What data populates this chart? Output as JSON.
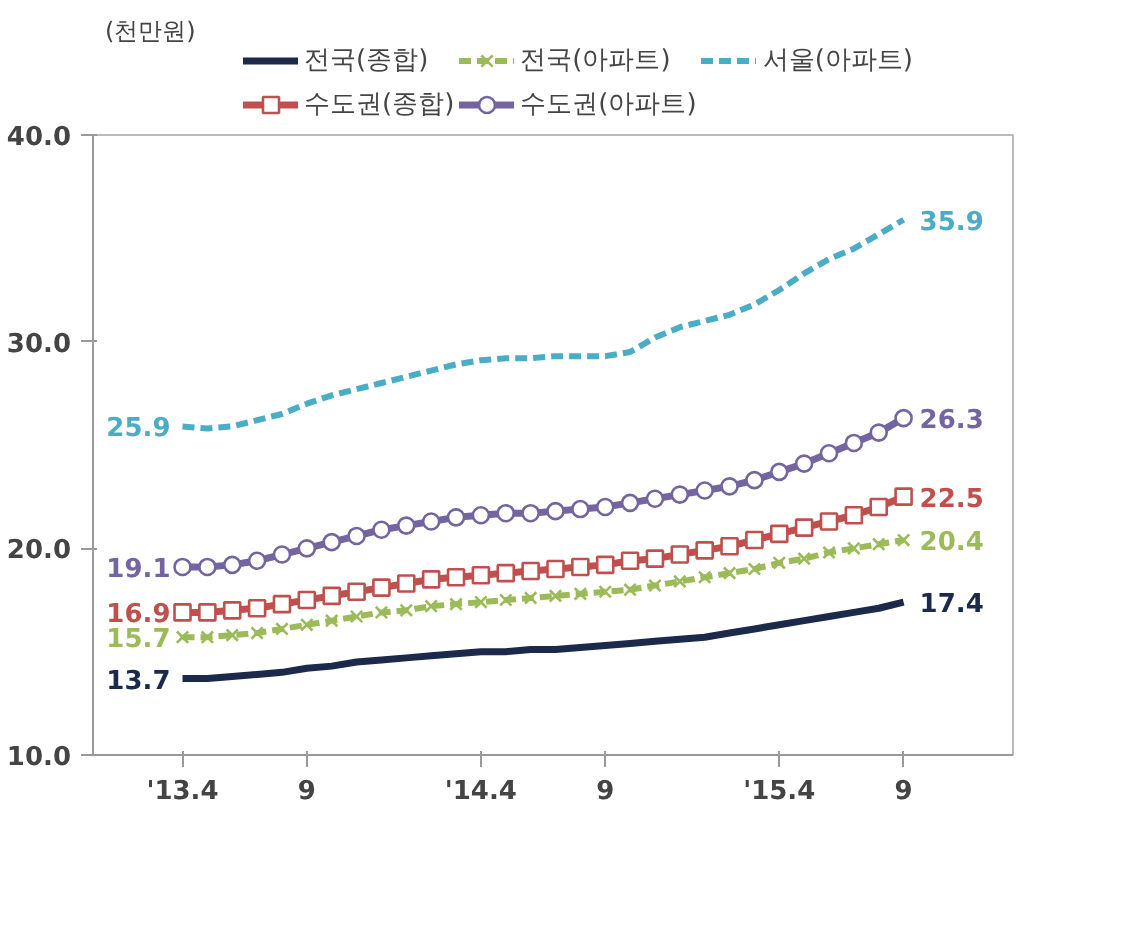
{
  "chart_data": {
    "type": "line",
    "ylabel": "(천만원)",
    "categories": [
      "'13.4",
      null,
      null,
      null,
      null,
      "9",
      null,
      null,
      null,
      null,
      null,
      null,
      "'14.4",
      null,
      null,
      null,
      null,
      "9",
      null,
      null,
      null,
      null,
      null,
      null,
      "'15.4",
      null,
      null,
      null,
      null,
      "9"
    ],
    "ylim": [
      10,
      40
    ],
    "yticks": [
      {
        "value": 10,
        "label": "10.0"
      },
      {
        "value": 20,
        "label": "20.0"
      },
      {
        "value": 30,
        "label": "30.0"
      },
      {
        "value": 40,
        "label": "40.0"
      }
    ],
    "grid": false,
    "legend": "top",
    "series": [
      {
        "name": "전국(종합)",
        "color": "#1b2a4a",
        "marker": "none",
        "line_style": "solid",
        "values": [
          13.7,
          13.7,
          13.8,
          13.9,
          14.0,
          14.2,
          14.3,
          14.5,
          14.6,
          14.7,
          14.8,
          14.9,
          15.0,
          15.0,
          15.1,
          15.1,
          15.2,
          15.3,
          15.4,
          15.5,
          15.6,
          15.7,
          15.9,
          16.1,
          16.3,
          16.5,
          16.7,
          16.9,
          17.1,
          17.4
        ],
        "value_labels": [
          "13.7",
          null,
          null,
          null,
          null,
          null,
          null,
          null,
          null,
          null,
          null,
          null,
          null,
          null,
          null,
          null,
          null,
          null,
          null,
          null,
          null,
          null,
          null,
          null,
          null,
          null,
          null,
          null,
          null,
          "17.4"
        ]
      },
      {
        "name": "수도권(종합)",
        "color": "#c0504d",
        "marker": "square",
        "line_style": "solid",
        "values": [
          16.9,
          16.9,
          17.0,
          17.1,
          17.3,
          17.5,
          17.7,
          17.9,
          18.1,
          18.3,
          18.5,
          18.6,
          18.7,
          18.8,
          18.9,
          19.0,
          19.1,
          19.2,
          19.4,
          19.5,
          19.7,
          19.9,
          20.1,
          20.4,
          20.7,
          21.0,
          21.3,
          21.6,
          22.0,
          22.5
        ],
        "value_labels": [
          "16.9",
          null,
          null,
          null,
          null,
          null,
          null,
          null,
          null,
          null,
          null,
          null,
          null,
          null,
          null,
          null,
          null,
          null,
          null,
          null,
          null,
          null,
          null,
          null,
          null,
          null,
          null,
          null,
          null,
          "22.5"
        ]
      },
      {
        "name": "전국(아파트)",
        "color": "#9bbb59",
        "marker": "cross",
        "line_style": "dashed",
        "values": [
          15.7,
          15.7,
          15.8,
          15.9,
          16.1,
          16.3,
          16.5,
          16.7,
          16.9,
          17.0,
          17.2,
          17.3,
          17.4,
          17.5,
          17.6,
          17.7,
          17.8,
          17.9,
          18.0,
          18.2,
          18.4,
          18.6,
          18.8,
          19.0,
          19.3,
          19.5,
          19.8,
          20.0,
          20.2,
          20.4
        ],
        "value_labels": [
          "15.7",
          null,
          null,
          null,
          null,
          null,
          null,
          null,
          null,
          null,
          null,
          null,
          null,
          null,
          null,
          null,
          null,
          null,
          null,
          null,
          null,
          null,
          null,
          null,
          null,
          null,
          null,
          null,
          null,
          "20.4"
        ]
      },
      {
        "name": "수도권(아파트)",
        "color": "#7464a0",
        "marker": "circle",
        "line_style": "solid",
        "values": [
          19.1,
          19.1,
          19.2,
          19.4,
          19.7,
          20.0,
          20.3,
          20.6,
          20.9,
          21.1,
          21.3,
          21.5,
          21.6,
          21.7,
          21.7,
          21.8,
          21.9,
          22.0,
          22.2,
          22.4,
          22.6,
          22.8,
          23.0,
          23.3,
          23.7,
          24.1,
          24.6,
          25.1,
          25.6,
          26.3
        ],
        "value_labels": [
          "19.1",
          null,
          null,
          null,
          null,
          null,
          null,
          null,
          null,
          null,
          null,
          null,
          null,
          null,
          null,
          null,
          null,
          null,
          null,
          null,
          null,
          null,
          null,
          null,
          null,
          null,
          null,
          null,
          null,
          "26.3"
        ]
      },
      {
        "name": "서울(아파트)",
        "color": "#4bacc6",
        "marker": "none",
        "line_style": "dashed",
        "values": [
          25.9,
          25.8,
          25.9,
          26.2,
          26.5,
          27.0,
          27.4,
          27.7,
          28.0,
          28.3,
          28.6,
          28.9,
          29.1,
          29.2,
          29.2,
          29.3,
          29.3,
          29.3,
          29.5,
          30.2,
          30.7,
          31.0,
          31.3,
          31.8,
          32.5,
          33.3,
          34.0,
          34.5,
          35.2,
          35.9
        ],
        "value_labels": [
          "25.9",
          null,
          null,
          null,
          null,
          null,
          null,
          null,
          null,
          null,
          null,
          null,
          null,
          null,
          null,
          null,
          null,
          null,
          null,
          null,
          null,
          null,
          null,
          null,
          null,
          null,
          null,
          null,
          null,
          "35.9"
        ]
      }
    ]
  }
}
